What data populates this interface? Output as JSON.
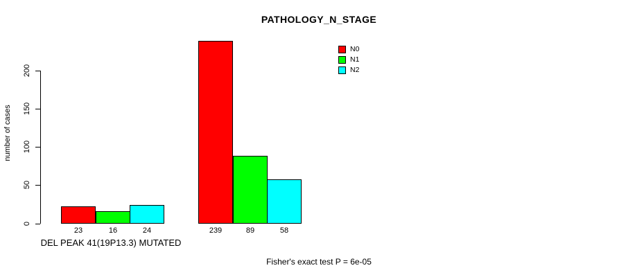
{
  "title": "PATHOLOGY_N_STAGE",
  "footer": {
    "stat_text": "Fisher's exact test P = 6e-05"
  },
  "chart_data": {
    "type": "bar",
    "title": "PATHOLOGY_N_STAGE",
    "xlabel": "",
    "ylabel": "number of cases",
    "ylim": [
      0,
      200
    ],
    "y_ticks": [
      0,
      50,
      100,
      150,
      200
    ],
    "grid": false,
    "legend_position": "top-right",
    "categories": [
      "DEL PEAK 41(19P13.3) MUTATED",
      ""
    ],
    "series": [
      {
        "name": "N0",
        "color": "#FF0000",
        "values": [
          23,
          239
        ]
      },
      {
        "name": "N1",
        "color": "#00FF00",
        "values": [
          16,
          89
        ]
      },
      {
        "name": "N2",
        "color": "#00FFFF",
        "values": [
          24,
          58
        ]
      }
    ],
    "bar_value_labels_shown": true,
    "annotation": "Fisher's exact test P = 6e-05"
  }
}
